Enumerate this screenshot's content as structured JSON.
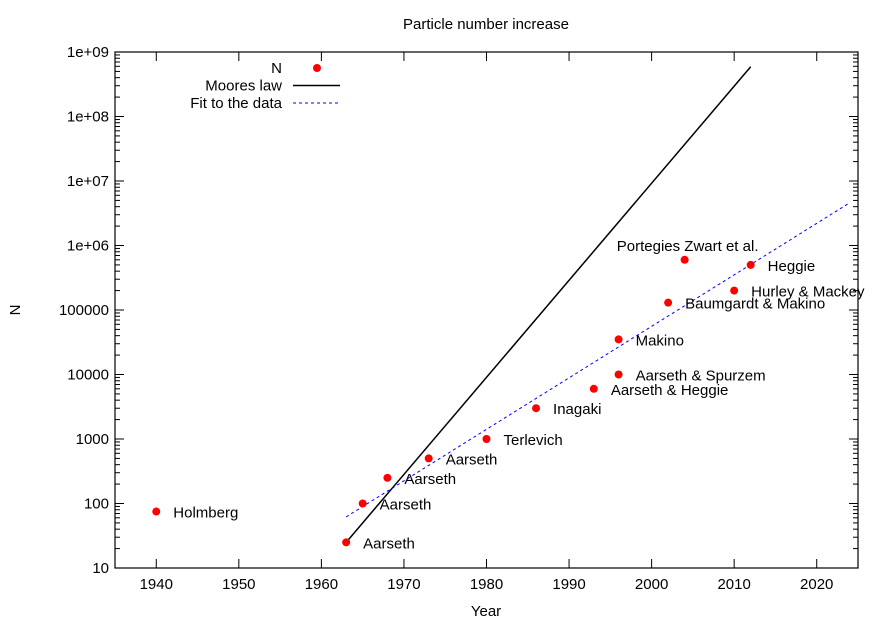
{
  "chart_data": {
    "type": "scatter",
    "title": "Particle number increase",
    "xlabel": "Year",
    "ylabel": "N",
    "xlim": [
      1935,
      2025
    ],
    "ylim": [
      10,
      1000000000
    ],
    "yscale": "log",
    "grid": false,
    "legend_placement": "top-left",
    "x_ticks": [
      1940,
      1950,
      1960,
      1970,
      1980,
      1990,
      2000,
      2010,
      2020
    ],
    "x_tick_labels": [
      "1940",
      "1950",
      "1960",
      "1970",
      "1980",
      "1990",
      "2000",
      "2010",
      "2020"
    ],
    "y_ticks": [
      10,
      100,
      1000,
      10000,
      100000,
      1000000,
      10000000,
      100000000,
      1000000000
    ],
    "y_tick_labels": [
      "10",
      "100",
      "1000",
      "10000",
      "100000",
      "1e+06",
      "1e+07",
      "1e+08",
      "1e+09"
    ],
    "series": [
      {
        "name": "N",
        "kind": "points",
        "color": "#ff0000",
        "points": [
          {
            "x": 1940,
            "y": 75,
            "label": "Holmberg"
          },
          {
            "x": 1963,
            "y": 25,
            "label": "Aarseth"
          },
          {
            "x": 1965,
            "y": 100,
            "label": "Aarseth"
          },
          {
            "x": 1968,
            "y": 250,
            "label": "Aarseth"
          },
          {
            "x": 1973,
            "y": 500,
            "label": "Aarseth"
          },
          {
            "x": 1980,
            "y": 1000,
            "label": "Terlevich"
          },
          {
            "x": 1986,
            "y": 3000,
            "label": "Inagaki"
          },
          {
            "x": 1993,
            "y": 6000,
            "label": "Aarseth & Heggie"
          },
          {
            "x": 1996,
            "y": 10000,
            "label": "Aarseth & Spurzem"
          },
          {
            "x": 1996,
            "y": 35000,
            "label": "Makino"
          },
          {
            "x": 2002,
            "y": 130000,
            "label": "Baumgardt & Makino"
          },
          {
            "x": 2004,
            "y": 600000,
            "label": "Portegies Zwart et al."
          },
          {
            "x": 2010,
            "y": 200000,
            "label": "Hurley & Mackey"
          },
          {
            "x": 2012,
            "y": 500000,
            "label": "Heggie"
          }
        ]
      },
      {
        "name": "Moores law",
        "kind": "line",
        "color": "#000000",
        "dash": "solid",
        "x": [
          1963,
          2012
        ],
        "y": [
          25,
          590000000
        ]
      },
      {
        "name": "Fit to the data",
        "kind": "line",
        "color": "#0000ff",
        "dash": "dotted",
        "x": [
          1963,
          2024
        ],
        "y": [
          62,
          4600000
        ]
      }
    ]
  }
}
